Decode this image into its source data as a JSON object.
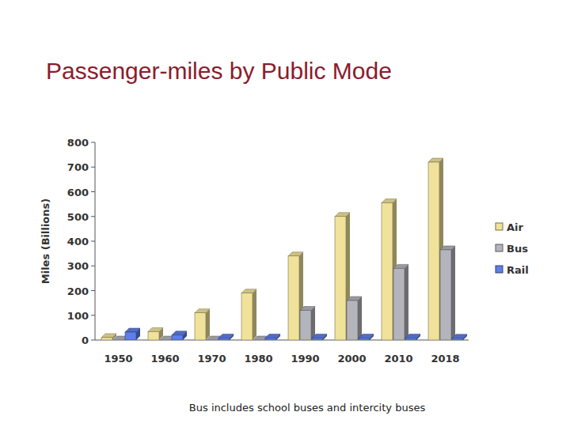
{
  "chart_data": {
    "type": "bar",
    "title": "Passenger-miles by Public Mode",
    "y_label": "Miles (Billions)",
    "footnote": "Bus includes school buses and intercity buses",
    "categories": [
      "1950",
      "1960",
      "1970",
      "1980",
      "1990",
      "2000",
      "2010",
      "2018"
    ],
    "series": [
      {
        "name": "Air",
        "color": "#f0e29a",
        "values": [
          10,
          34,
          110,
          190,
          340,
          500,
          555,
          720
        ]
      },
      {
        "name": "Bus",
        "color": "#b4b4bc",
        "values": [
          0,
          0,
          0,
          0,
          120,
          160,
          290,
          365
        ]
      },
      {
        "name": "Rail",
        "color": "#5f7fe8",
        "values": [
          32,
          20,
          8,
          8,
          8,
          8,
          8,
          7
        ]
      }
    ],
    "ylim": [
      0,
      800
    ],
    "yticks": [
      0,
      100,
      200,
      300,
      400,
      500,
      600,
      700,
      800
    ],
    "grid": false,
    "legend": "right"
  }
}
